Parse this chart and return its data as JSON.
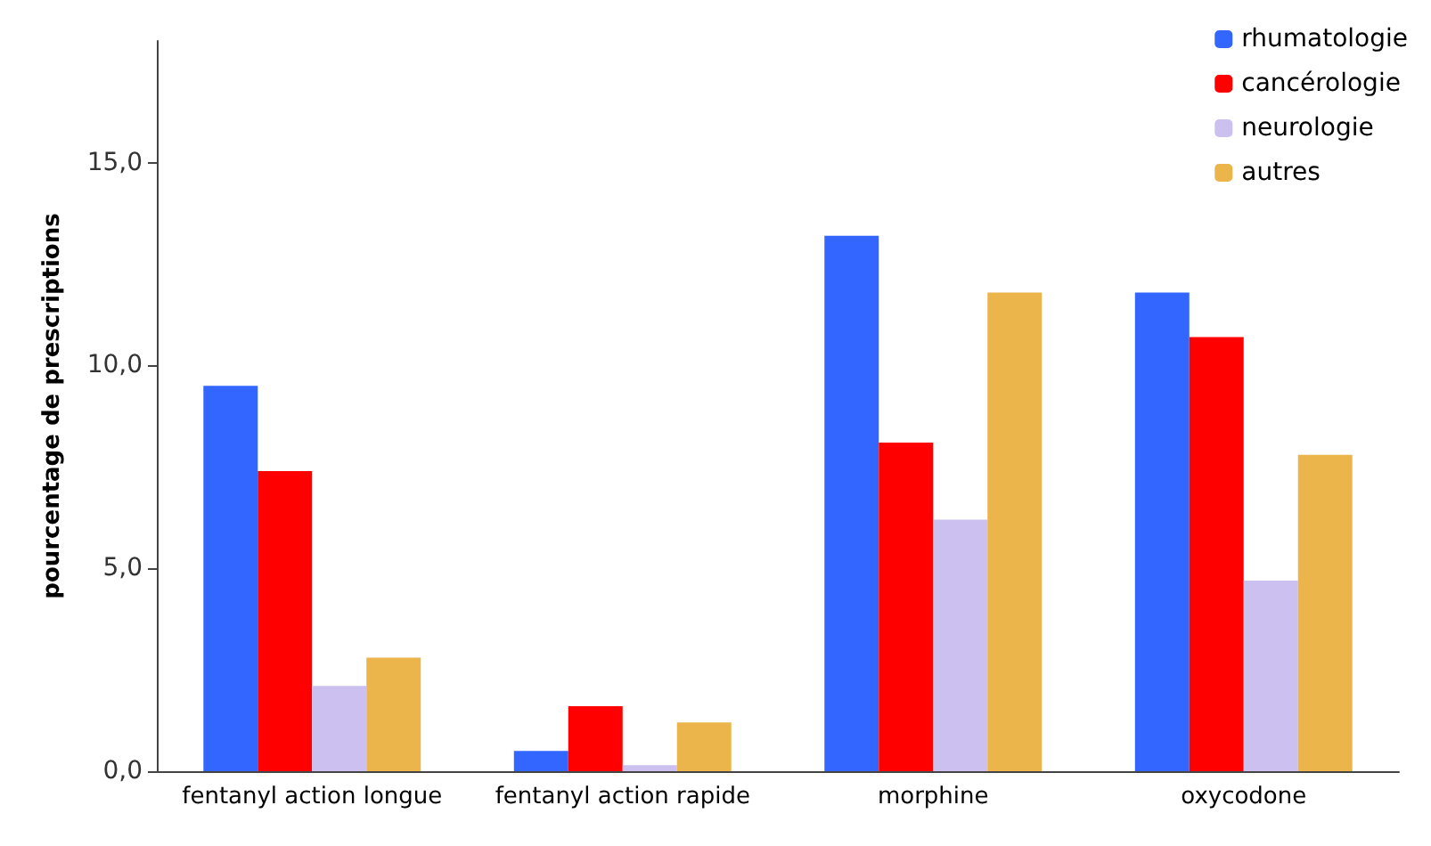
{
  "chart_data": {
    "type": "bar",
    "ylabel": "pourcentage de prescriptions",
    "categories": [
      "fentanyl action longue",
      "fentanyl action rapide",
      "morphine",
      "oxycodone"
    ],
    "series": [
      {
        "name": "rhumatologie",
        "color": "#3366ff",
        "values": [
          9.5,
          0.5,
          13.2,
          11.8
        ]
      },
      {
        "name": "cancérologie",
        "color": "#ff0000",
        "values": [
          7.4,
          1.6,
          8.1,
          10.7
        ]
      },
      {
        "name": "neurologie",
        "color": "#ccc0f0",
        "values": [
          2.1,
          0.15,
          6.2,
          4.7
        ]
      },
      {
        "name": "autres",
        "color": "#ecb54c",
        "values": [
          2.8,
          1.2,
          11.8,
          7.8
        ]
      }
    ],
    "ylim": [
      0,
      18
    ],
    "yticks": [
      {
        "value": 0,
        "label": "0,0"
      },
      {
        "value": 5,
        "label": "5,0"
      },
      {
        "value": 10,
        "label": "10,0"
      },
      {
        "value": 15,
        "label": "15,0"
      }
    ],
    "grid": false,
    "legend": "top right"
  }
}
